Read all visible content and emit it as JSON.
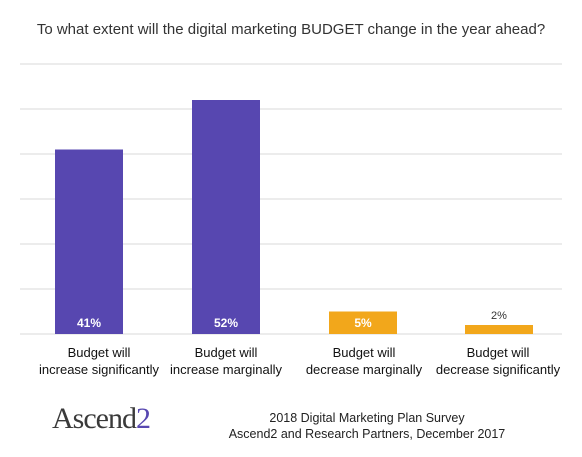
{
  "logo": {
    "text": "Ascend",
    "number": "2"
  },
  "source": {
    "line1": "2018 Digital Marketing Plan Survey",
    "line2": "Ascend2 and Research Partners, December 2017"
  },
  "colors": {
    "increase": "#5747b0",
    "decrease": "#f2a71b",
    "grid": "#d9d9d9"
  },
  "chart_data": {
    "type": "bar",
    "title": "To what extent will the digital marketing BUDGET change in the year ahead?",
    "categories": [
      [
        "Budget will",
        "increase significantly"
      ],
      [
        "Budget will",
        "increase marginally"
      ],
      [
        "Budget will",
        "decrease marginally"
      ],
      [
        "Budget will",
        "decrease significantly"
      ]
    ],
    "values": [
      41,
      52,
      5,
      2
    ],
    "data_labels": [
      "41%",
      "52%",
      "5%",
      "2%"
    ],
    "ylim": [
      0,
      60
    ],
    "grid": true,
    "xlabel": "",
    "ylabel": ""
  }
}
